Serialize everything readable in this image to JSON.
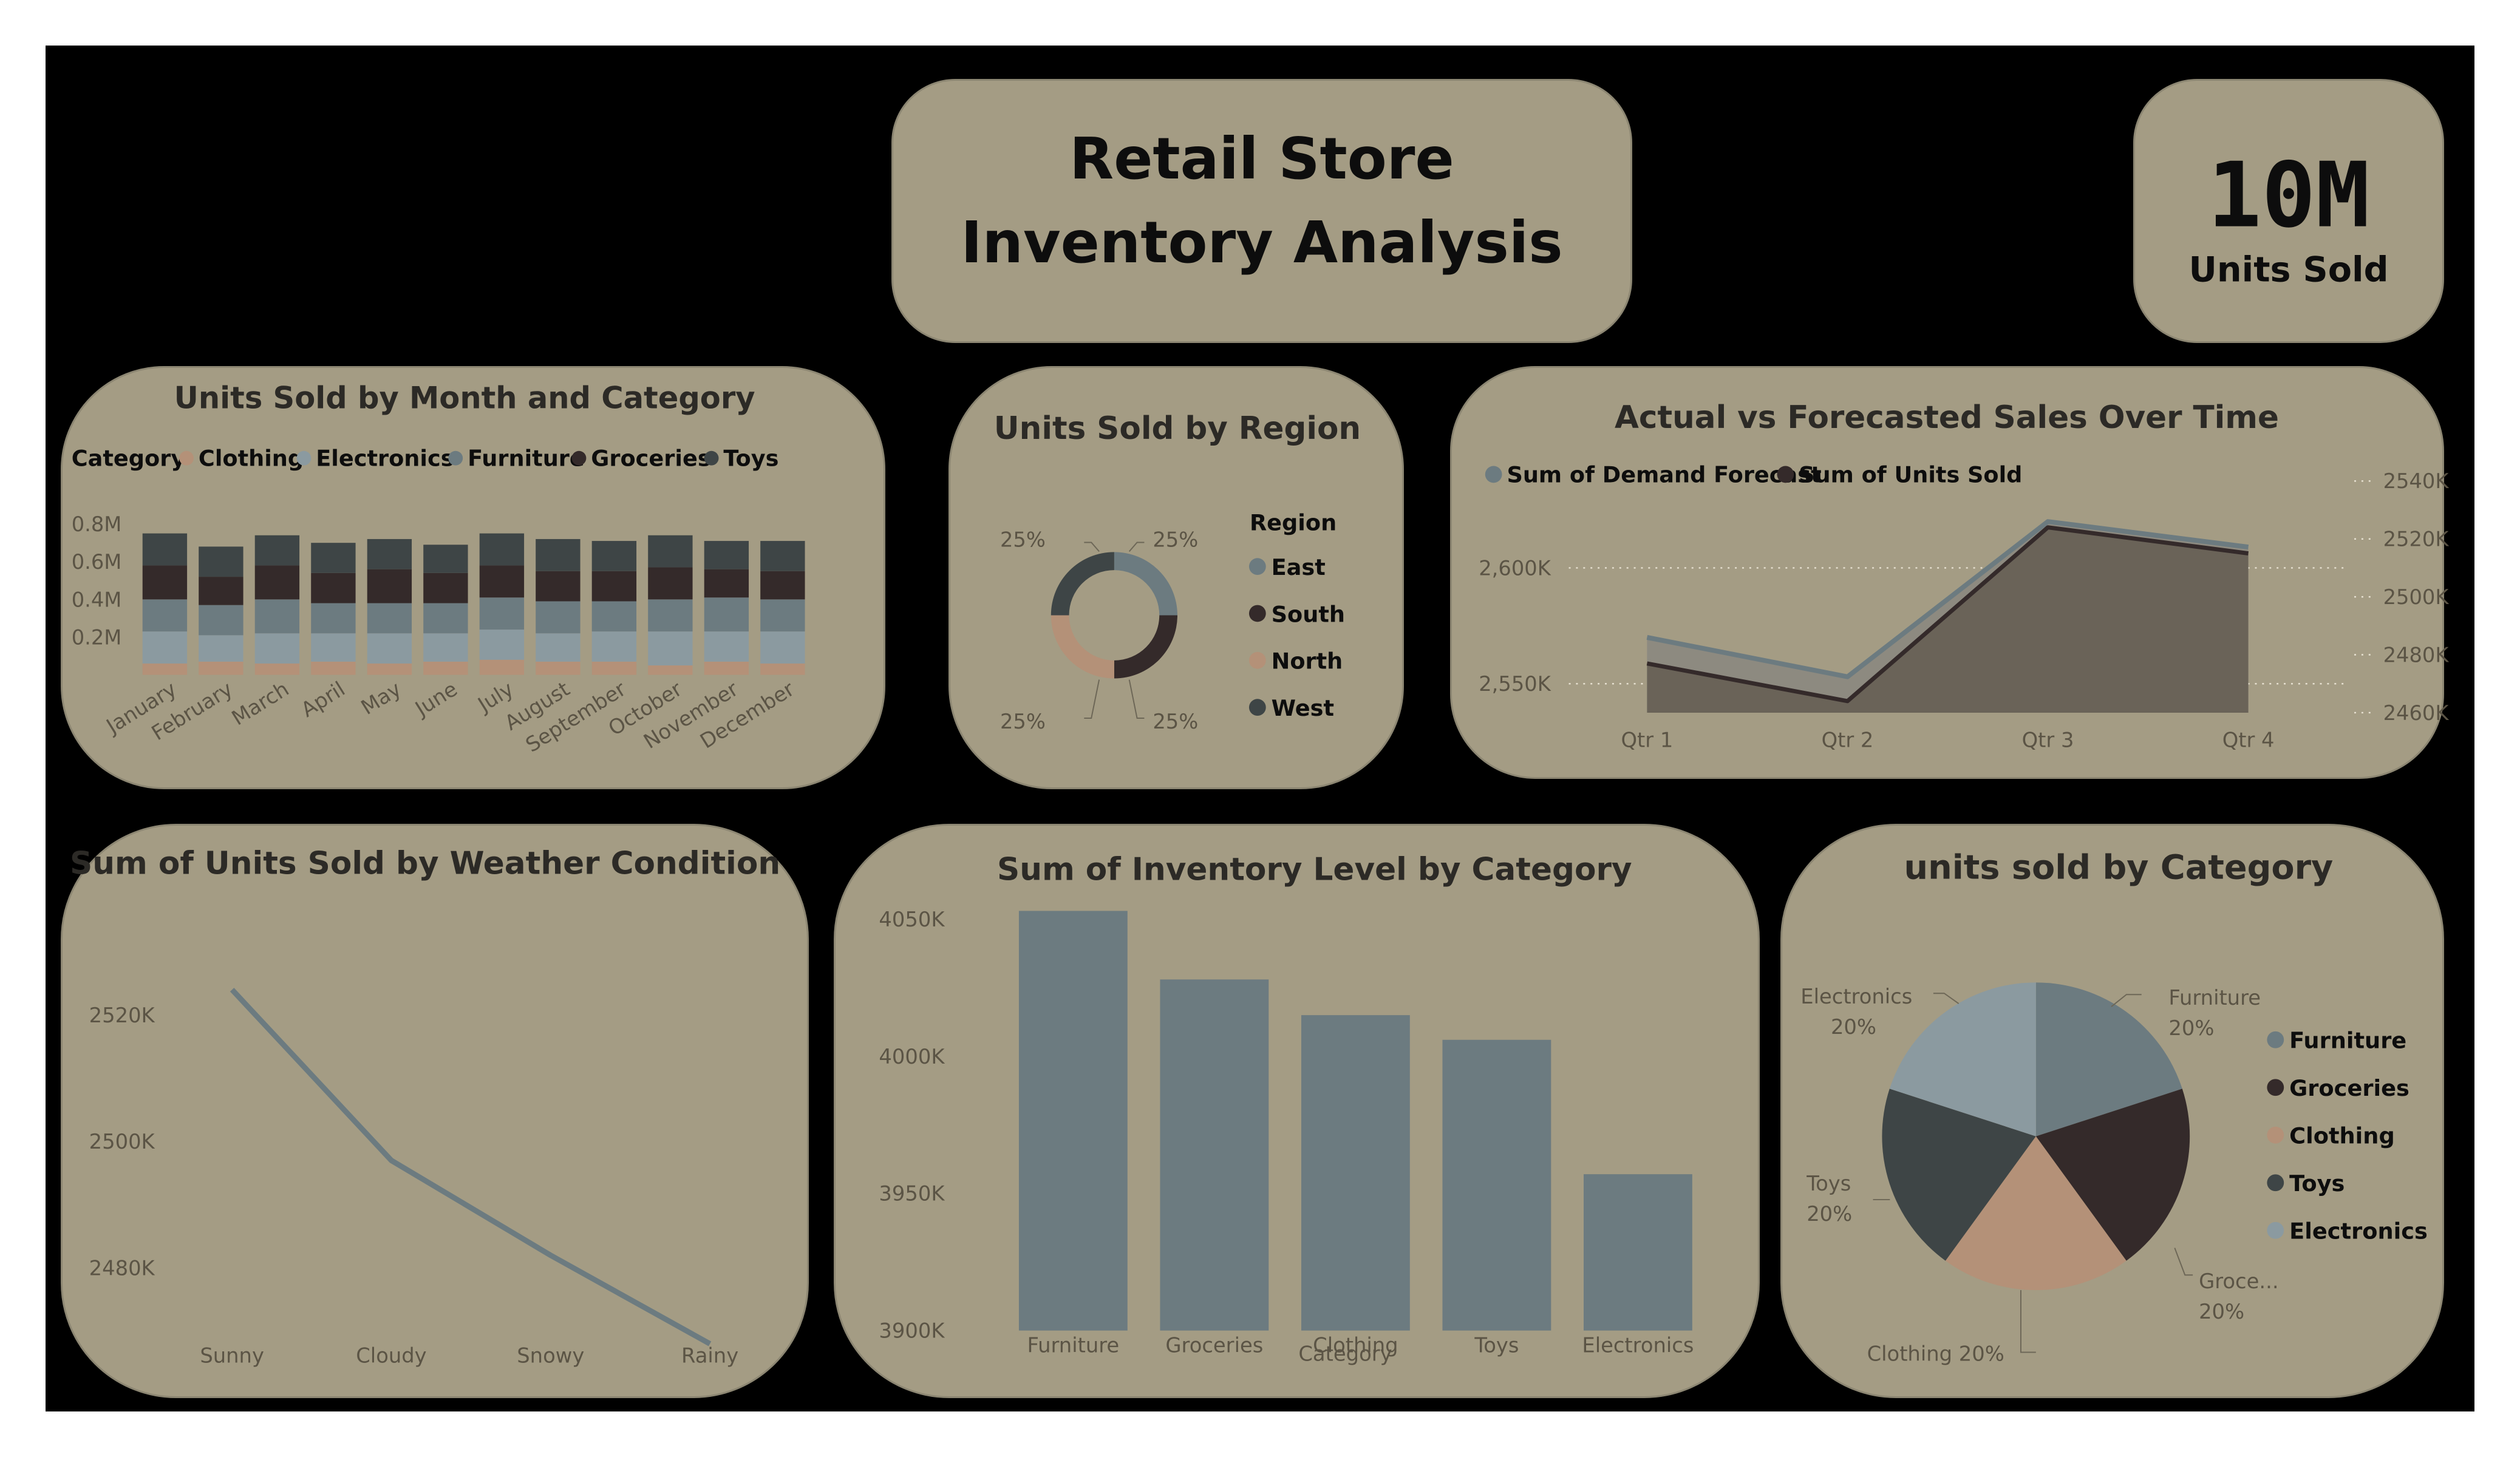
{
  "title": {
    "line1": "Retail Store",
    "line2": "Inventory Analysis"
  },
  "kpi": {
    "value": "10M",
    "label": "Units Sold"
  },
  "colors": {
    "canvas": "#000000",
    "card": "#a49c84",
    "Clothing": "#b49178",
    "Electronics": "#8b9aa0",
    "Furniture": "#6c7b80",
    "Groceries": "#342a2a",
    "Toys": "#3e4546",
    "bar": "#6c7b80",
    "forecast": "#6c7b80",
    "units": "#342a2a",
    "area": "#6a6358"
  },
  "chart_data": [
    {
      "id": "month_category",
      "type": "bar",
      "stacked": true,
      "title": "Units Sold by Month and Category",
      "legend_title": "Category",
      "categories": [
        "January",
        "February",
        "March",
        "April",
        "May",
        "June",
        "July",
        "August",
        "September",
        "October",
        "November",
        "December"
      ],
      "series": [
        {
          "name": "Clothing",
          "values": [
            0.06,
            0.07,
            0.06,
            0.07,
            0.06,
            0.07,
            0.08,
            0.07,
            0.07,
            0.05,
            0.07,
            0.06
          ]
        },
        {
          "name": "Electronics",
          "values": [
            0.17,
            0.14,
            0.16,
            0.15,
            0.16,
            0.15,
            0.16,
            0.15,
            0.16,
            0.18,
            0.16,
            0.17
          ]
        },
        {
          "name": "Furniture",
          "values": [
            0.17,
            0.16,
            0.18,
            0.16,
            0.16,
            0.16,
            0.17,
            0.17,
            0.16,
            0.17,
            0.18,
            0.17
          ]
        },
        {
          "name": "Groceries",
          "values": [
            0.18,
            0.15,
            0.18,
            0.16,
            0.18,
            0.16,
            0.17,
            0.16,
            0.16,
            0.17,
            0.15,
            0.15
          ]
        },
        {
          "name": "Toys",
          "values": [
            0.17,
            0.16,
            0.16,
            0.16,
            0.16,
            0.15,
            0.17,
            0.17,
            0.16,
            0.17,
            0.15,
            0.16
          ]
        }
      ],
      "y_ticks": [
        "0.2M",
        "0.4M",
        "0.6M",
        "0.8M"
      ],
      "ylim": [
        0,
        0.9
      ]
    },
    {
      "id": "region",
      "type": "pie",
      "donut": true,
      "title": "Units Sold by Region",
      "legend_title": "Region",
      "labels": [
        "East",
        "South",
        "North",
        "West"
      ],
      "values": [
        25,
        25,
        25,
        25
      ],
      "data_labels": [
        "25%",
        "25%",
        "25%",
        "25%"
      ],
      "colors": [
        "#6c7b80",
        "#342a2a",
        "#b49178",
        "#3e4546"
      ]
    },
    {
      "id": "actual_forecast",
      "type": "area",
      "title": "Actual vs Forecasted Sales Over Time",
      "categories": [
        "Qtr 1",
        "Qtr 2",
        "Qtr 3",
        "Qtr 4"
      ],
      "series": [
        {
          "name": "Sum of Demand Forecast",
          "values": [
            2570000,
            2553000,
            2620000,
            2609000
          ],
          "axis": "left"
        },
        {
          "name": "Sum of Units Sold",
          "values": [
            2477000,
            2464000,
            2524000,
            2515000
          ],
          "axis": "right"
        }
      ],
      "y_left_ticks": [
        "2,550K",
        "2,600K"
      ],
      "y_left_lim": [
        2537500,
        2637500
      ],
      "y_right_ticks": [
        "2460K",
        "2480K",
        "2500K",
        "2520K",
        "2540K"
      ],
      "y_right_lim": [
        2460000,
        2540000
      ]
    },
    {
      "id": "weather",
      "type": "line",
      "title": "Sum of Units Sold by Weather Condition",
      "categories": [
        "Sunny",
        "Cloudy",
        "Snowy",
        "Rainy"
      ],
      "values": [
        2524000,
        2497000,
        2482000,
        2468000
      ],
      "y_ticks": [
        "2480K",
        "2500K",
        "2520K"
      ],
      "ylim": [
        2466000,
        2528000
      ]
    },
    {
      "id": "inventory",
      "type": "bar",
      "title": "Sum of Inventory Level by Category",
      "xlabel": "Category",
      "categories": [
        "Furniture",
        "Groceries",
        "Clothing",
        "Toys",
        "Electronics"
      ],
      "values": [
        4053000,
        4028000,
        4015000,
        4006000,
        3957000
      ],
      "y_ticks": [
        "3900K",
        "3950K",
        "4000K",
        "4050K"
      ],
      "ylim": [
        3900000,
        4050000
      ]
    },
    {
      "id": "category_pie",
      "type": "pie",
      "title": "units sold by Category",
      "labels": [
        "Furniture",
        "Groceries",
        "Clothing",
        "Toys",
        "Electronics"
      ],
      "values": [
        20,
        20,
        20,
        20,
        20
      ],
      "data_labels": [
        {
          "name": "Furniture",
          "pct": "20%"
        },
        {
          "name": "Groce...",
          "pct": "20%"
        },
        {
          "name": "Clothing",
          "pct": "20%"
        },
        {
          "name": "Toys",
          "pct": "20%"
        },
        {
          "name": "Electronics",
          "pct": "20%"
        }
      ],
      "colors": [
        "#6c7b80",
        "#342a2a",
        "#b49178",
        "#3e4546",
        "#8b9aa0"
      ]
    }
  ]
}
